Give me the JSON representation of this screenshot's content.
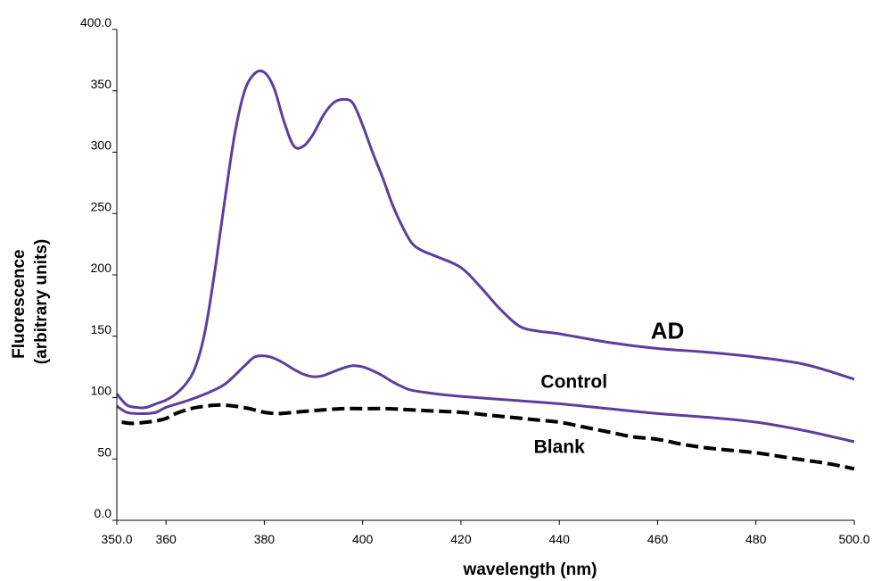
{
  "chart_data": {
    "type": "line",
    "title": "",
    "xlabel": "wavelength (nm)",
    "ylabel_lines": [
      "Fluorescence",
      "(arbitrary units)"
    ],
    "xlim": [
      350,
      500
    ],
    "ylim": [
      0,
      400
    ],
    "grid": false,
    "legend": "inline labels",
    "x_ticks": [
      {
        "value": 350,
        "label": "350.0"
      },
      {
        "value": 360,
        "label": "360"
      },
      {
        "value": 380,
        "label": "380"
      },
      {
        "value": 400,
        "label": "400"
      },
      {
        "value": 420,
        "label": "420"
      },
      {
        "value": 440,
        "label": "440"
      },
      {
        "value": 460,
        "label": "460"
      },
      {
        "value": 480,
        "label": "480"
      },
      {
        "value": 500,
        "label": "500.0"
      }
    ],
    "y_ticks": [
      {
        "value": 0,
        "label": "0.0"
      },
      {
        "value": 50,
        "label": "50"
      },
      {
        "value": 100,
        "label": "100"
      },
      {
        "value": 150,
        "label": "150"
      },
      {
        "value": 200,
        "label": "200"
      },
      {
        "value": 250,
        "label": "250"
      },
      {
        "value": 300,
        "label": "300"
      },
      {
        "value": 350,
        "label": "350"
      },
      {
        "value": 400,
        "label": "400.0"
      }
    ],
    "series": [
      {
        "name": "AD",
        "color": "#5b3f9e",
        "dash": "solid",
        "label_at": {
          "x": 462,
          "y": 148
        },
        "label_size": "large",
        "x": [
          350,
          352,
          354,
          356,
          358,
          360,
          362,
          364,
          366,
          368,
          370,
          372,
          374,
          376,
          378,
          380,
          382,
          384,
          386,
          388,
          390,
          392,
          394,
          396,
          398,
          400,
          402,
          404,
          406,
          408,
          410,
          412,
          415,
          420,
          424,
          428,
          432,
          436,
          440,
          450,
          460,
          470,
          480,
          490,
          500
        ],
        "y": [
          103,
          94,
          92,
          92,
          95,
          98,
          103,
          111,
          125,
          155,
          205,
          262,
          315,
          350,
          364,
          365,
          352,
          325,
          305,
          305,
          315,
          330,
          340,
          343,
          340,
          322,
          300,
          280,
          258,
          240,
          226,
          220,
          215,
          206,
          190,
          172,
          158,
          154,
          152,
          145,
          140,
          137,
          133,
          127,
          115
        ]
      },
      {
        "name": "Control",
        "color": "#5b3f9e",
        "dash": "solid",
        "label_at": {
          "x": 443,
          "y": 108
        },
        "label_size": "medium",
        "x": [
          350,
          352,
          354,
          356,
          358,
          360,
          364,
          368,
          372,
          376,
          378,
          380,
          382,
          384,
          386,
          388,
          390,
          392,
          394,
          396,
          398,
          400,
          402,
          404,
          406,
          408,
          410,
          415,
          420,
          430,
          440,
          450,
          460,
          470,
          480,
          490,
          500
        ],
        "y": [
          93,
          88,
          87,
          87,
          88,
          92,
          97,
          103,
          111,
          126,
          133,
          134,
          132,
          128,
          123,
          119,
          117,
          118,
          121,
          124,
          126,
          125,
          122,
          118,
          113,
          109,
          106,
          103,
          101,
          98,
          95,
          91,
          87,
          84,
          80,
          73,
          64
        ]
      },
      {
        "name": "Blank",
        "color": "#000000",
        "dash": "dashed",
        "label_at": {
          "x": 440,
          "y": 55
        },
        "label_size": "medium",
        "x": [
          351,
          353,
          356,
          358,
          360,
          362,
          365,
          368,
          371,
          374,
          377,
          380,
          383,
          386,
          389,
          392,
          396,
          400,
          405,
          410,
          415,
          420,
          425,
          430,
          435,
          440,
          445,
          450,
          455,
          460,
          465,
          470,
          475,
          480,
          485,
          490,
          495,
          500
        ],
        "y": [
          80,
          79,
          80,
          81,
          83,
          87,
          91,
          93,
          94,
          93,
          91,
          88,
          87,
          88,
          89,
          90,
          91,
          91,
          91,
          90,
          89,
          88,
          86,
          84,
          82,
          80,
          76,
          72,
          68,
          66,
          62,
          59,
          57,
          55,
          52,
          49,
          46,
          42
        ]
      }
    ]
  }
}
